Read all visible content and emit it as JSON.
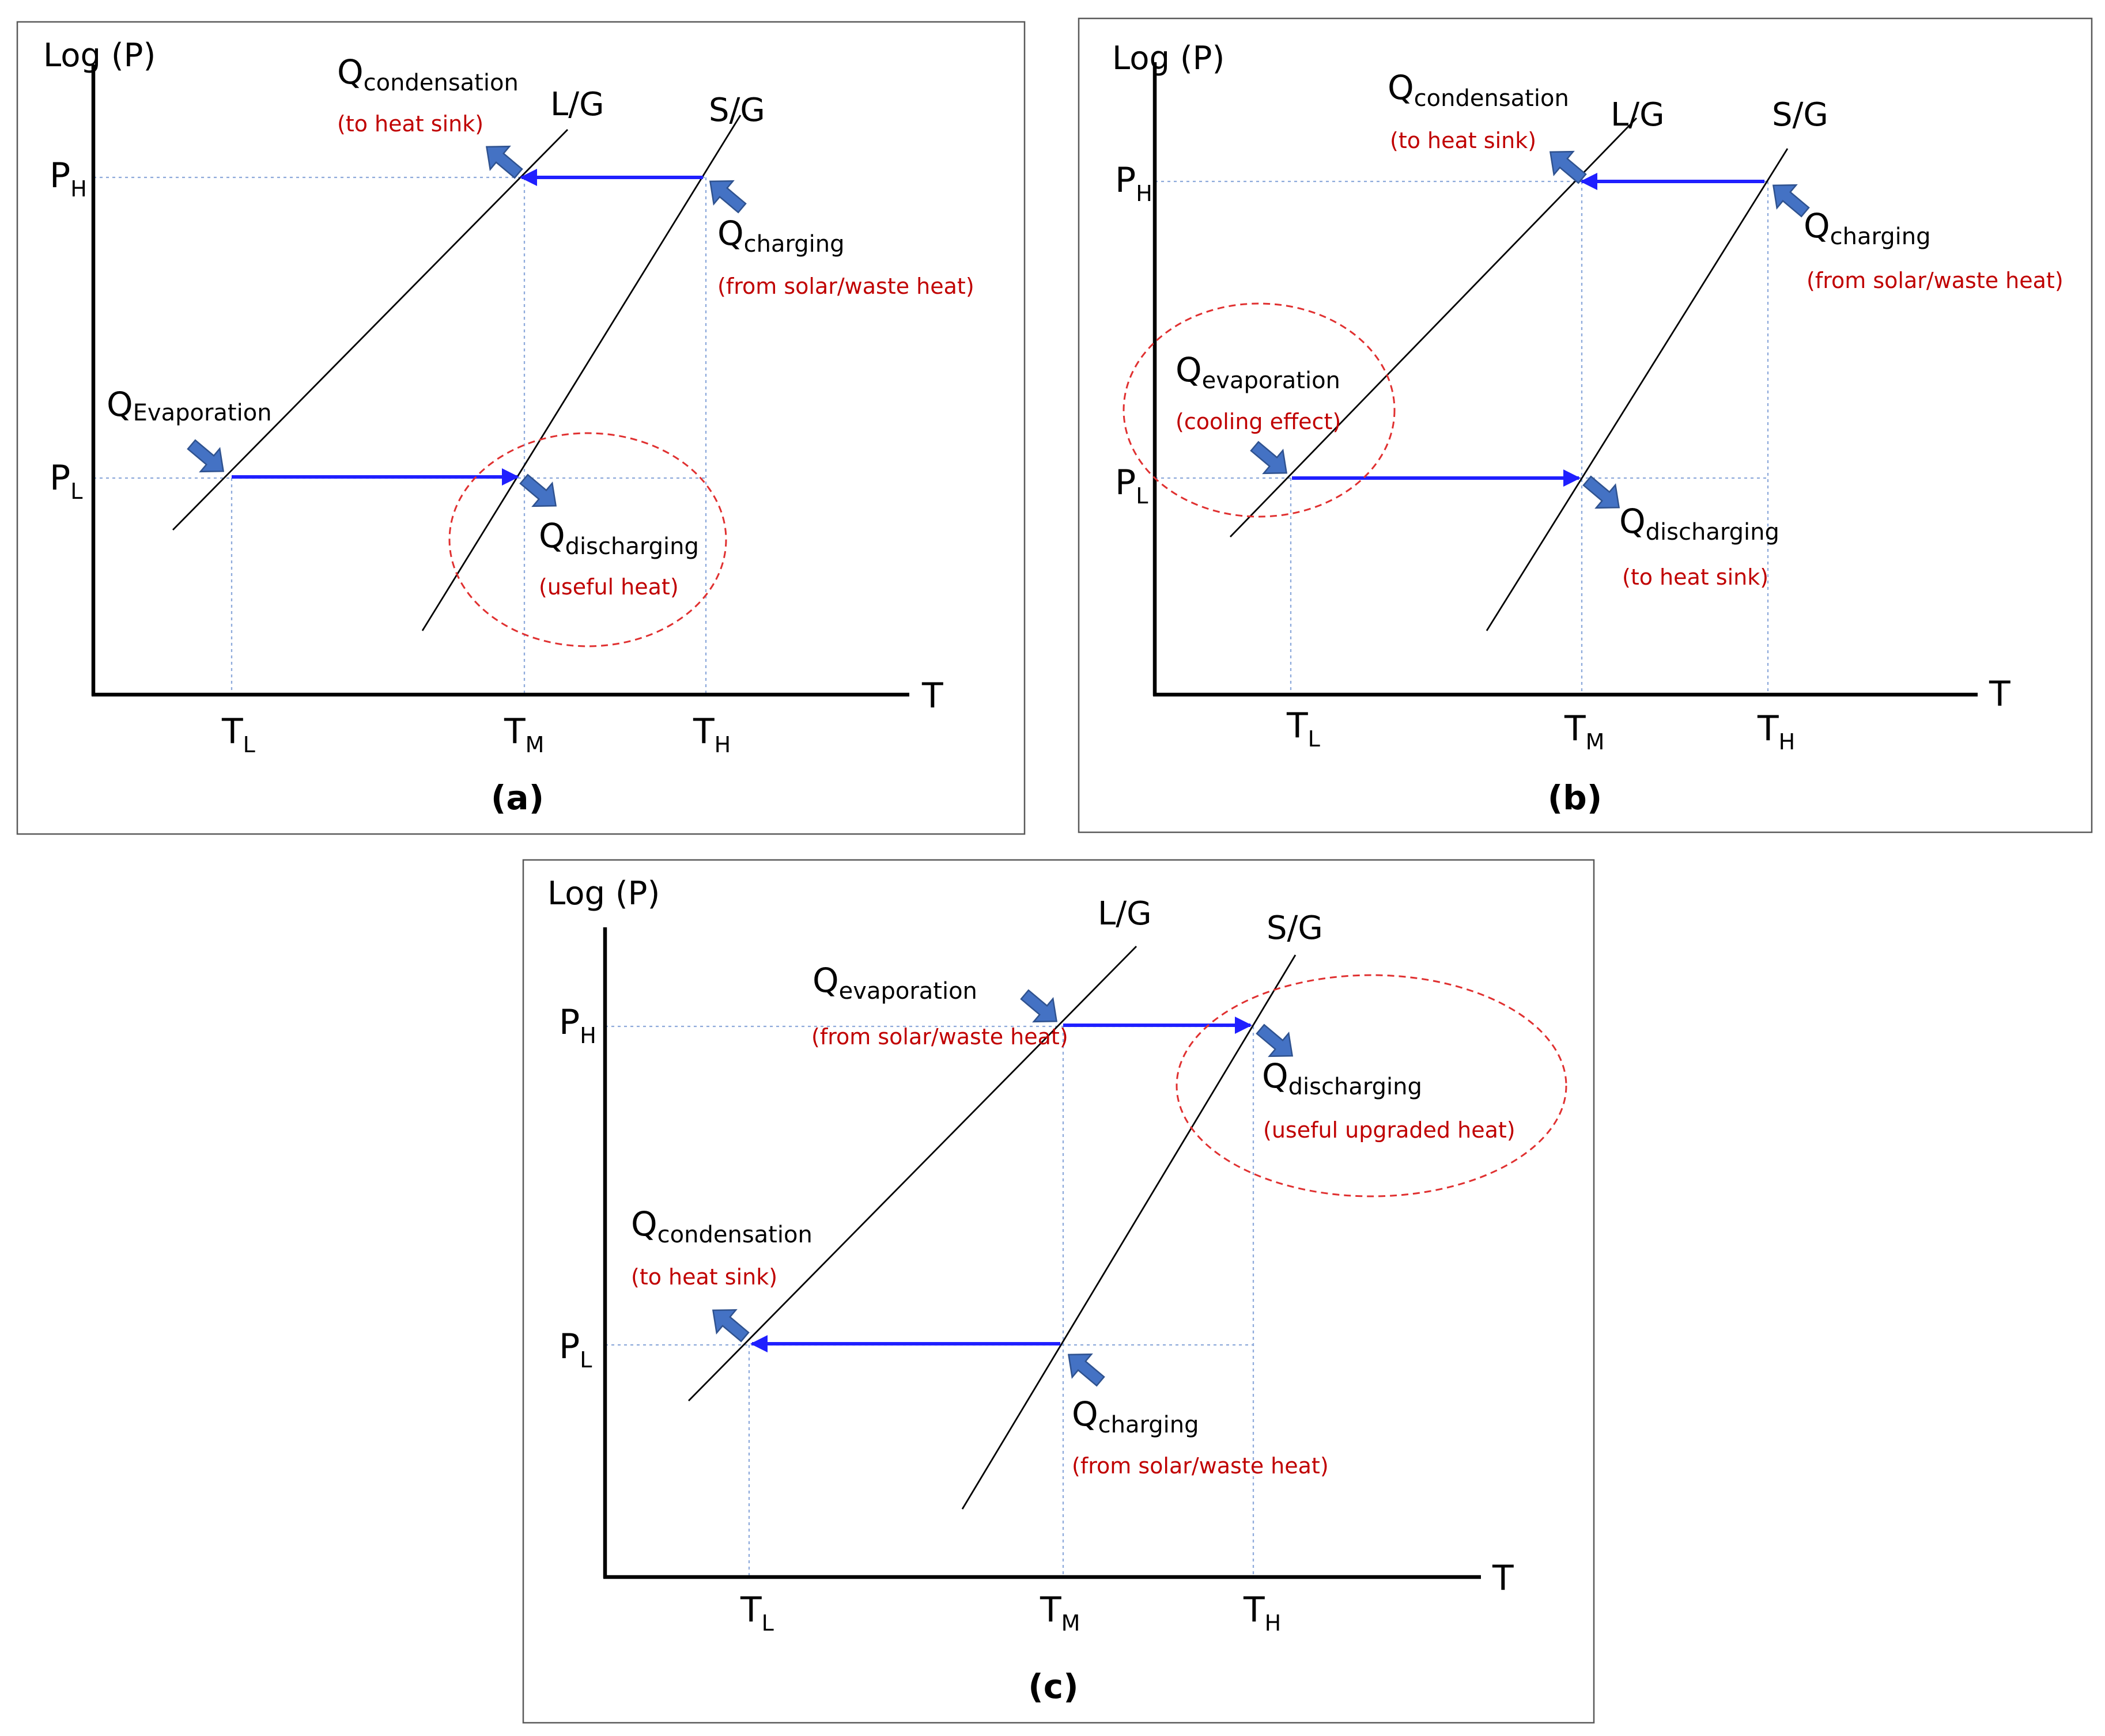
{
  "colors": {
    "flow_arrow": "#1f1fff",
    "heat_arrow": "#4472c4",
    "annotation": "#c00000",
    "highlight_circle": "#e03030",
    "guide_line": "#8eaadb"
  },
  "axes": {
    "y_label": "Log (P)",
    "x_label": "T",
    "p_high": "P",
    "p_high_sub": "H",
    "p_low": "P",
    "p_low_sub": "L",
    "t_low": "T",
    "t_low_sub": "L",
    "t_mid": "T",
    "t_mid_sub": "M",
    "t_high": "T",
    "t_high_sub": "H",
    "liquid_gas": "L/G",
    "solid_gas": "S/G"
  },
  "panel_a": {
    "caption": "(a)",
    "condensation": {
      "symbol": "Q",
      "sub": "condensation",
      "note": "(to heat sink)"
    },
    "charging": {
      "symbol": "Q",
      "sub": "charging",
      "note": "(from solar/waste heat)"
    },
    "evaporation": {
      "symbol": "Q",
      "sub": "Evaporation"
    },
    "discharging": {
      "symbol": "Q",
      "sub": "discharging",
      "note": "(useful heat)"
    }
  },
  "panel_b": {
    "caption": "(b)",
    "condensation": {
      "symbol": "Q",
      "sub": "condensation",
      "note": "(to heat sink)"
    },
    "charging": {
      "symbol": "Q",
      "sub": "charging",
      "note": "(from solar/waste heat)"
    },
    "evaporation": {
      "symbol": "Q",
      "sub": "evaporation",
      "note": "(cooling effect)"
    },
    "discharging": {
      "symbol": "Q",
      "sub": "discharging",
      "note": "(to heat sink)"
    }
  },
  "panel_c": {
    "caption": "(c)",
    "evaporation": {
      "symbol": "Q",
      "sub": "evaporation",
      "note": "(from solar/waste heat)"
    },
    "discharging": {
      "symbol": "Q",
      "sub": "discharging",
      "note": "(useful upgraded heat)"
    },
    "condensation": {
      "symbol": "Q",
      "sub": "condensation",
      "note": "(to heat sink)"
    },
    "charging": {
      "symbol": "Q",
      "sub": "charging",
      "note": "(from solar/waste heat)"
    }
  }
}
